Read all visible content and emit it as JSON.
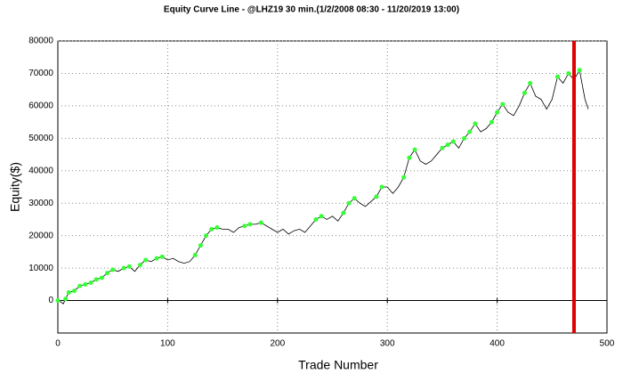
{
  "chart_data": {
    "type": "line",
    "title": "Equity Curve Line - @LHZ19 30 min.(1/2/2008 08:30 - 11/20/2019 13:00)",
    "x_label": "Trade Number",
    "y_label": "Equity($)",
    "x": [
      0,
      3,
      5,
      7,
      10,
      15,
      20,
      25,
      30,
      35,
      40,
      45,
      50,
      55,
      60,
      65,
      70,
      75,
      80,
      85,
      90,
      95,
      100,
      105,
      110,
      115,
      120,
      125,
      130,
      135,
      140,
      145,
      150,
      155,
      160,
      165,
      170,
      175,
      180,
      185,
      190,
      195,
      200,
      205,
      210,
      215,
      220,
      225,
      230,
      235,
      240,
      245,
      250,
      255,
      260,
      265,
      270,
      275,
      280,
      285,
      290,
      295,
      300,
      305,
      310,
      315,
      320,
      325,
      330,
      335,
      340,
      345,
      350,
      355,
      360,
      365,
      370,
      375,
      380,
      385,
      390,
      395,
      400,
      405,
      410,
      415,
      420,
      425,
      430,
      435,
      440,
      445,
      450,
      455,
      460,
      465,
      470,
      475,
      480,
      483
    ],
    "values": [
      0,
      -500,
      -1000,
      500,
      2500,
      3000,
      4500,
      5000,
      5500,
      6500,
      7000,
      8500,
      9500,
      9000,
      10000,
      10500,
      9000,
      11000,
      12500,
      12000,
      13000,
      13500,
      12500,
      13000,
      12000,
      11500,
      12000,
      14000,
      17000,
      20000,
      22000,
      22500,
      22000,
      22000,
      21000,
      22500,
      23000,
      23500,
      23500,
      24000,
      23000,
      22000,
      21000,
      22000,
      20500,
      21500,
      22000,
      21000,
      23000,
      25000,
      26000,
      25000,
      26000,
      24500,
      27000,
      30000,
      31500,
      30000,
      29000,
      30500,
      32000,
      35000,
      35000,
      33000,
      35000,
      38000,
      44000,
      46500,
      43000,
      42000,
      43000,
      45000,
      47000,
      48000,
      49000,
      47000,
      50000,
      52000,
      54500,
      52000,
      53000,
      55000,
      58000,
      60500,
      58000,
      57000,
      60000,
      64000,
      67000,
      63000,
      62000,
      59000,
      62000,
      69000,
      67000,
      70000,
      68000,
      71000,
      62000,
      59000
    ],
    "color": "#000000",
    "high_color": "#33ff33",
    "vline": 470,
    "vline_color": "#e00000",
    "xlim": [
      0,
      500
    ],
    "xticks": [
      0,
      100,
      200,
      300,
      400,
      500
    ],
    "ylim": [
      -10000,
      80000
    ],
    "yticks": [
      0,
      10000,
      20000,
      30000,
      40000,
      50000,
      60000,
      70000,
      80000
    ],
    "grid": true
  }
}
